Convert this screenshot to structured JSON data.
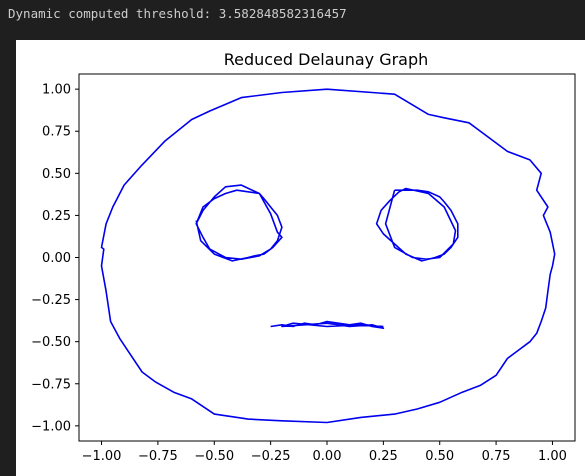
{
  "console": {
    "output_line": "Dynamic computed threshold: 3.582848582316457"
  },
  "colors": {
    "edge": "#0000ee",
    "background": "#1f1f1f",
    "plot_bg": "#ffffff"
  },
  "chart_data": {
    "type": "line",
    "title": "Reduced Delaunay Graph",
    "xlabel": "",
    "ylabel": "",
    "xlim": [
      -1.1,
      1.1
    ],
    "ylim": [
      -1.09,
      1.09
    ],
    "xticks": [
      -1.0,
      -0.75,
      -0.5,
      -0.25,
      0.0,
      0.25,
      0.5,
      0.75,
      1.0
    ],
    "xtick_labels": [
      "−1.00",
      "−0.75",
      "−0.50",
      "−0.25",
      "0.00",
      "0.25",
      "0.50",
      "0.75",
      "1.00"
    ],
    "yticks": [
      1.0,
      0.75,
      0.5,
      0.25,
      0.0,
      -0.25,
      -0.5,
      -0.75,
      -1.0
    ],
    "ytick_labels": [
      "1.00",
      "0.75",
      "0.50",
      "0.25",
      "0.00",
      "−0.25",
      "−0.50",
      "−0.75",
      "−1.00"
    ],
    "grid": false,
    "series": [
      {
        "x": [
          0.0,
          0.2,
          0.3,
          0.45,
          0.52,
          0.63,
          0.8,
          0.9,
          0.95,
          0.93,
          0.98,
          0.96,
          0.99,
          1.01,
          1.0,
          0.99,
          0.98,
          0.97,
          0.95,
          0.93,
          0.9,
          0.85,
          0.8,
          0.75,
          0.68,
          0.6,
          0.5,
          0.4,
          0.3,
          0.15,
          0.0,
          -0.2,
          -0.35,
          -0.5,
          -0.6,
          -0.68,
          -0.76,
          -0.82,
          -0.88,
          -0.92,
          -0.96,
          -0.98,
          -1.0,
          -0.99,
          -1.0,
          -0.98,
          -0.95,
          -0.9,
          -0.82,
          -0.72,
          -0.6,
          -0.52,
          -0.38,
          -0.2,
          0.0
        ],
        "y": [
          1.0,
          0.98,
          0.97,
          0.85,
          0.83,
          0.8,
          0.63,
          0.58,
          0.5,
          0.4,
          0.3,
          0.25,
          0.15,
          0.02,
          -0.05,
          -0.1,
          -0.2,
          -0.3,
          -0.38,
          -0.45,
          -0.5,
          -0.55,
          -0.6,
          -0.7,
          -0.76,
          -0.8,
          -0.86,
          -0.9,
          -0.93,
          -0.95,
          -0.98,
          -0.97,
          -0.96,
          -0.93,
          -0.84,
          -0.8,
          -0.74,
          -0.68,
          -0.56,
          -0.48,
          -0.38,
          -0.2,
          -0.05,
          0.05,
          0.06,
          0.2,
          0.3,
          0.43,
          0.55,
          0.69,
          0.82,
          0.87,
          0.95,
          0.98,
          1.0
        ]
      },
      {
        "x": [
          -0.58,
          -0.55,
          -0.5,
          -0.45,
          -0.4,
          -0.3,
          -0.28,
          -0.25,
          -0.22,
          -0.2,
          -0.22,
          -0.25,
          -0.3,
          -0.38,
          -0.45,
          -0.52,
          -0.55,
          -0.58,
          -0.55,
          -0.5,
          -0.45,
          -0.38,
          -0.3,
          -0.25,
          -0.22,
          -0.2,
          -0.24,
          -0.28,
          -0.32,
          -0.35,
          -0.42,
          -0.5,
          -0.56,
          -0.58
        ],
        "y": [
          0.2,
          0.3,
          0.35,
          0.38,
          0.4,
          0.38,
          0.35,
          0.3,
          0.25,
          0.18,
          0.1,
          0.05,
          0.01,
          -0.01,
          0.0,
          0.05,
          0.12,
          0.2,
          0.28,
          0.36,
          0.42,
          0.43,
          0.38,
          0.26,
          0.15,
          0.12,
          0.06,
          0.02,
          0.01,
          0.0,
          -0.02,
          0.02,
          0.1,
          0.22
        ]
      },
      {
        "x": [
          0.3,
          0.4,
          0.45,
          0.5,
          0.52,
          0.55,
          0.58,
          0.58,
          0.55,
          0.52,
          0.48,
          0.42,
          0.35,
          0.3,
          0.25,
          0.22,
          0.24,
          0.28,
          0.32,
          0.35,
          0.45,
          0.52,
          0.57,
          0.56,
          0.5,
          0.44,
          0.38,
          0.3,
          0.26,
          0.3
        ],
        "y": [
          0.4,
          0.4,
          0.39,
          0.36,
          0.33,
          0.28,
          0.2,
          0.12,
          0.06,
          0.02,
          0.0,
          -0.02,
          0.02,
          0.08,
          0.14,
          0.2,
          0.28,
          0.34,
          0.39,
          0.41,
          0.38,
          0.3,
          0.16,
          0.08,
          0.0,
          -0.01,
          0.0,
          0.06,
          0.2,
          0.4
        ]
      },
      {
        "x": [
          -0.25,
          -0.2,
          -0.15,
          -0.1,
          -0.05,
          0.0,
          0.05,
          0.1,
          0.15,
          0.2,
          0.25,
          0.2,
          0.1,
          0.0,
          -0.1,
          -0.2,
          -0.15,
          0.0,
          0.15,
          0.25
        ],
        "y": [
          -0.41,
          -0.4,
          -0.41,
          -0.39,
          -0.4,
          -0.38,
          -0.39,
          -0.4,
          -0.39,
          -0.41,
          -0.42,
          -0.4,
          -0.41,
          -0.39,
          -0.4,
          -0.41,
          -0.39,
          -0.41,
          -0.4,
          -0.41
        ]
      }
    ]
  }
}
